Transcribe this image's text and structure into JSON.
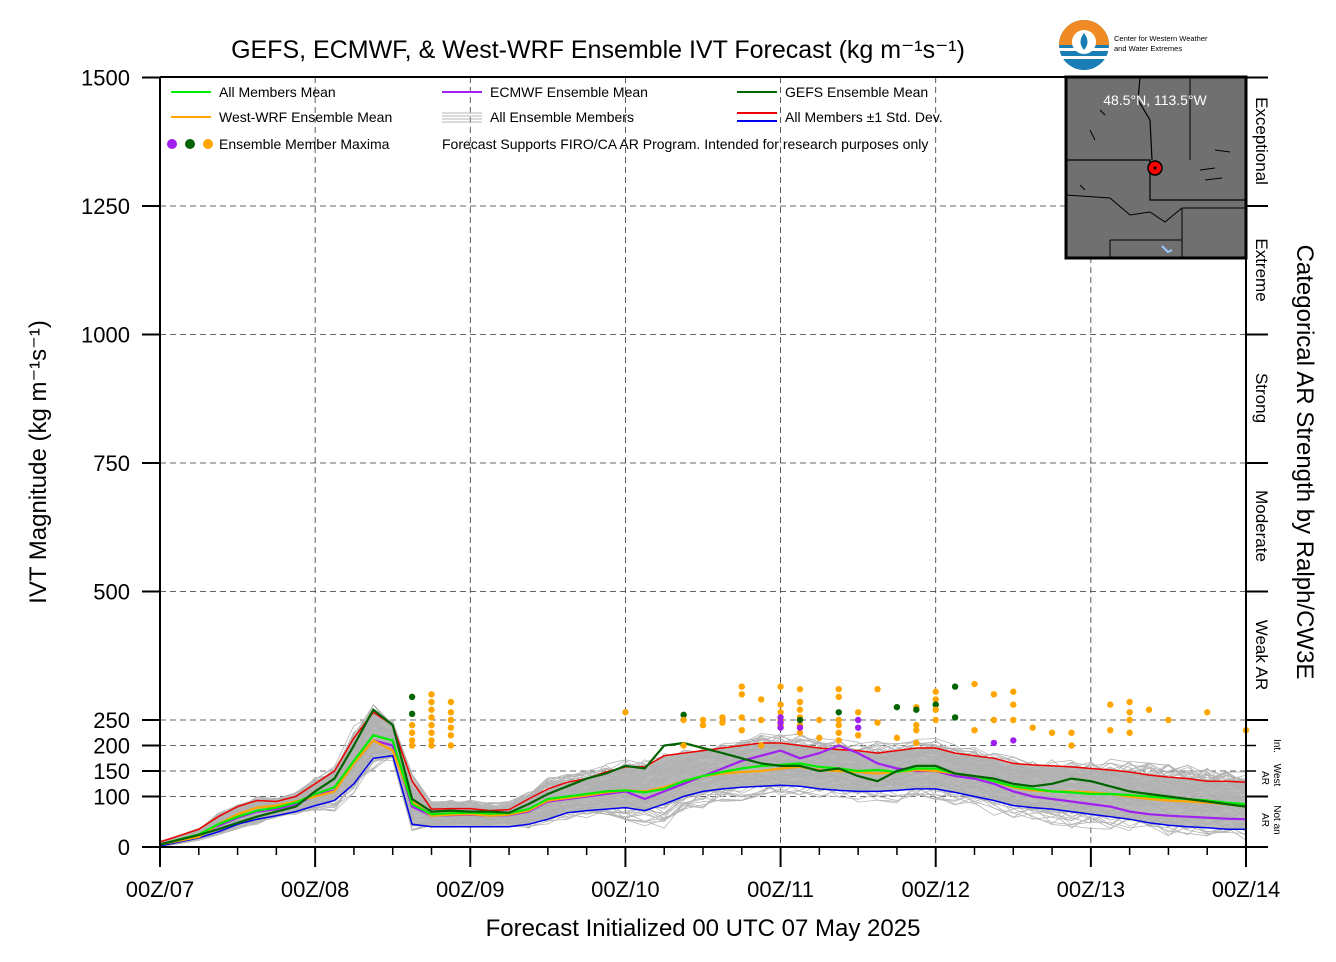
{
  "title": "GEFS, ECMWF, & West-WRF Ensemble IVT Forecast (kg m⁻¹s⁻¹)",
  "xlabel": "Forecast Initialized 00 UTC 07 May 2025",
  "ylabel": "IVT Magnitude (kg m⁻¹s⁻¹)",
  "right_axis_label": "Categorical AR Strength by Ralph/CW3E",
  "logo": {
    "line1": "Center for Western Weather",
    "line2": "and Water Extremes"
  },
  "inset": {
    "location_text": "48.5°N, 113.5°W"
  },
  "legend": {
    "all_mean": "All Members Mean",
    "ecmwf_mean": "ECMWF Ensemble Mean",
    "gefs_mean": "GEFS Ensemble Mean",
    "wrf_mean": "West-WRF Ensemble Mean",
    "all_members": "All Ensemble Members",
    "std_dev": "All Members ±1 Std. Dev.",
    "maxima": "Ensemble Member Maxima",
    "note": "Forecast Supports FIRO/CA AR Program. Intended for research purposes only"
  },
  "categories": {
    "exceptional": "Exceptional",
    "extreme": "Extreme",
    "strong": "Strong",
    "moderate": "Moderate",
    "weak": "Weak AR",
    "int_1": "Int.",
    "int_2": "West",
    "int_3": "AR",
    "not_1": "Not an",
    "not_2": "AR"
  },
  "colors": {
    "all_mean": "#00ee00",
    "ecmwf": "#a020f0",
    "gefs": "#006400",
    "wrf": "#ffa500",
    "std_upper": "#ee0000",
    "std_lower": "#0000ee",
    "members": "#b4b4b4",
    "band": "#b0b0b0",
    "map_bg": "#707070"
  },
  "chart_data": {
    "type": "line",
    "xlabel": "Forecast Initialized 00 UTC 07 May 2025",
    "ylabel": "IVT Magnitude (kg m⁻¹s⁻¹)",
    "x_unit": "forecast hour",
    "xlim": [
      0,
      168
    ],
    "ylim": [
      0,
      1500
    ],
    "x_ticks": [
      0,
      24,
      48,
      72,
      96,
      120,
      144,
      168
    ],
    "x_tick_labels": [
      "00Z/07",
      "00Z/08",
      "00Z/09",
      "00Z/10",
      "00Z/11",
      "00Z/12",
      "00Z/13",
      "00Z/14"
    ],
    "y_ticks": [
      0,
      100,
      150,
      200,
      250,
      500,
      750,
      1000,
      1250,
      1500
    ],
    "y_tick_labels": [
      "0",
      "100",
      "150",
      "200",
      "250",
      "500",
      "750",
      "1000",
      "1250",
      "1500"
    ],
    "grid": true,
    "ar_category_bounds": [
      0,
      100,
      250,
      500,
      750,
      1000,
      1250,
      1500
    ],
    "x": [
      0,
      6,
      9,
      12,
      15,
      18,
      21,
      24,
      27,
      30,
      33,
      36,
      39,
      42,
      45,
      48,
      51,
      54,
      57,
      60,
      63,
      66,
      69,
      72,
      75,
      78,
      81,
      84,
      87,
      90,
      93,
      96,
      99,
      102,
      105,
      108,
      111,
      114,
      117,
      120,
      123,
      126,
      129,
      132,
      135,
      138,
      141,
      144,
      147,
      150,
      153,
      156,
      159,
      162,
      165,
      168
    ],
    "series": [
      {
        "name": "All Members Mean",
        "key": "all_mean",
        "values": [
          5,
          25,
          45,
          60,
          72,
          78,
          88,
          105,
          118,
          170,
          220,
          210,
          85,
          65,
          67,
          68,
          66,
          67,
          75,
          95,
          100,
          105,
          110,
          112,
          108,
          115,
          130,
          140,
          148,
          155,
          160,
          162,
          165,
          158,
          155,
          150,
          152,
          148,
          155,
          155,
          145,
          140,
          130,
          120,
          115,
          110,
          108,
          105,
          105,
          103,
          100,
          97,
          95,
          92,
          88,
          85
        ]
      },
      {
        "name": "ECMWF Ensemble Mean",
        "key": "ecmwf",
        "values": [
          5,
          24,
          42,
          58,
          70,
          75,
          85,
          102,
          112,
          165,
          210,
          200,
          80,
          62,
          63,
          64,
          62,
          63,
          70,
          90,
          95,
          100,
          105,
          110,
          95,
          110,
          125,
          140,
          155,
          170,
          180,
          190,
          175,
          185,
          200,
          185,
          165,
          155,
          150,
          150,
          140,
          135,
          125,
          110,
          100,
          95,
          90,
          85,
          80,
          70,
          65,
          62,
          60,
          58,
          56,
          55
        ]
      },
      {
        "name": "GEFS Ensemble Mean",
        "key": "gefs",
        "values": [
          5,
          24,
          35,
          48,
          60,
          70,
          80,
          110,
          135,
          200,
          270,
          240,
          95,
          70,
          72,
          70,
          70,
          68,
          85,
          105,
          120,
          135,
          145,
          160,
          155,
          200,
          205,
          195,
          185,
          175,
          165,
          160,
          160,
          150,
          155,
          140,
          130,
          150,
          160,
          160,
          145,
          140,
          135,
          125,
          120,
          125,
          135,
          130,
          120,
          110,
          105,
          100,
          95,
          90,
          85,
          80
        ]
      },
      {
        "name": "West-WRF Ensemble Mean",
        "key": "wrf",
        "values": [
          5,
          20,
          45,
          65,
          78,
          82,
          90,
          100,
          110,
          165,
          210,
          190,
          90,
          62,
          64,
          65,
          62,
          64,
          72,
          92,
          97,
          102,
          108,
          112,
          110,
          118,
          130,
          140,
          145,
          148,
          150,
          155,
          158,
          152,
          150,
          148,
          145,
          148,
          152,
          150,
          145,
          140,
          130,
          118,
          112,
          110,
          110,
          108,
          105,
          100,
          95,
          92,
          90,
          88,
          85,
          80
        ]
      },
      {
        "name": "All Members ±1 Std. Dev.",
        "key": "std_upper",
        "values": [
          10,
          35,
          60,
          80,
          92,
          90,
          100,
          125,
          150,
          215,
          265,
          240,
          130,
          75,
          76,
          76,
          72,
          74,
          95,
          115,
          128,
          135,
          148,
          158,
          158,
          180,
          185,
          190,
          195,
          200,
          205,
          205,
          200,
          195,
          192,
          190,
          185,
          190,
          195,
          195,
          185,
          180,
          175,
          165,
          162,
          160,
          158,
          155,
          152,
          148,
          142,
          138,
          135,
          130,
          130,
          128
        ]
      },
      {
        "name": "All Members ±1 Std. Dev.",
        "key": "std_lower",
        "values": [
          2,
          18,
          30,
          45,
          55,
          62,
          70,
          82,
          92,
          125,
          175,
          180,
          45,
          40,
          40,
          40,
          40,
          40,
          45,
          55,
          68,
          72,
          75,
          78,
          72,
          85,
          100,
          110,
          115,
          118,
          120,
          122,
          120,
          115,
          112,
          110,
          110,
          112,
          115,
          115,
          108,
          100,
          92,
          82,
          78,
          75,
          70,
          65,
          60,
          55,
          48,
          43,
          40,
          38,
          35,
          35
        ]
      }
    ],
    "maxima": [
      {
        "x": 39,
        "y": 295,
        "model": "gefs"
      },
      {
        "x": 39,
        "y": 262,
        "model": "gefs"
      },
      {
        "x": 39,
        "y": 240,
        "model": "wrf"
      },
      {
        "x": 39,
        "y": 225,
        "model": "wrf"
      },
      {
        "x": 39,
        "y": 210,
        "model": "wrf"
      },
      {
        "x": 39,
        "y": 200,
        "model": "wrf"
      },
      {
        "x": 42,
        "y": 300,
        "model": "wrf"
      },
      {
        "x": 42,
        "y": 285,
        "model": "wrf"
      },
      {
        "x": 42,
        "y": 270,
        "model": "wrf"
      },
      {
        "x": 42,
        "y": 255,
        "model": "wrf"
      },
      {
        "x": 42,
        "y": 240,
        "model": "wrf"
      },
      {
        "x": 42,
        "y": 225,
        "model": "wrf"
      },
      {
        "x": 42,
        "y": 210,
        "model": "wrf"
      },
      {
        "x": 42,
        "y": 200,
        "model": "wrf"
      },
      {
        "x": 45,
        "y": 285,
        "model": "wrf"
      },
      {
        "x": 45,
        "y": 265,
        "model": "wrf"
      },
      {
        "x": 45,
        "y": 250,
        "model": "wrf"
      },
      {
        "x": 45,
        "y": 235,
        "model": "wrf"
      },
      {
        "x": 45,
        "y": 220,
        "model": "wrf"
      },
      {
        "x": 45,
        "y": 200,
        "model": "wrf"
      },
      {
        "x": 72,
        "y": 265,
        "model": "wrf"
      },
      {
        "x": 81,
        "y": 260,
        "model": "gefs"
      },
      {
        "x": 81,
        "y": 250,
        "model": "wrf"
      },
      {
        "x": 81,
        "y": 200,
        "model": "wrf"
      },
      {
        "x": 84,
        "y": 250,
        "model": "wrf"
      },
      {
        "x": 84,
        "y": 240,
        "model": "wrf"
      },
      {
        "x": 87,
        "y": 255,
        "model": "wrf"
      },
      {
        "x": 87,
        "y": 245,
        "model": "wrf"
      },
      {
        "x": 90,
        "y": 315,
        "model": "wrf"
      },
      {
        "x": 90,
        "y": 300,
        "model": "wrf"
      },
      {
        "x": 90,
        "y": 255,
        "model": "wrf"
      },
      {
        "x": 90,
        "y": 230,
        "model": "wrf"
      },
      {
        "x": 93,
        "y": 290,
        "model": "wrf"
      },
      {
        "x": 93,
        "y": 250,
        "model": "wrf"
      },
      {
        "x": 93,
        "y": 200,
        "model": "wrf"
      },
      {
        "x": 96,
        "y": 315,
        "model": "wrf"
      },
      {
        "x": 96,
        "y": 280,
        "model": "wrf"
      },
      {
        "x": 96,
        "y": 265,
        "model": "wrf"
      },
      {
        "x": 96,
        "y": 250,
        "model": "wrf"
      },
      {
        "x": 96,
        "y": 240,
        "model": "wrf"
      },
      {
        "x": 96,
        "y": 255,
        "model": "ecmwf"
      },
      {
        "x": 96,
        "y": 245,
        "model": "ecmwf"
      },
      {
        "x": 96,
        "y": 235,
        "model": "ecmwf"
      },
      {
        "x": 99,
        "y": 310,
        "model": "wrf"
      },
      {
        "x": 99,
        "y": 285,
        "model": "wrf"
      },
      {
        "x": 99,
        "y": 270,
        "model": "wrf"
      },
      {
        "x": 99,
        "y": 255,
        "model": "wrf"
      },
      {
        "x": 99,
        "y": 240,
        "model": "wrf"
      },
      {
        "x": 99,
        "y": 225,
        "model": "wrf"
      },
      {
        "x": 99,
        "y": 250,
        "model": "gefs"
      },
      {
        "x": 99,
        "y": 235,
        "model": "ecmwf"
      },
      {
        "x": 102,
        "y": 250,
        "model": "wrf"
      },
      {
        "x": 102,
        "y": 215,
        "model": "wrf"
      },
      {
        "x": 105,
        "y": 310,
        "model": "wrf"
      },
      {
        "x": 105,
        "y": 295,
        "model": "wrf"
      },
      {
        "x": 105,
        "y": 265,
        "model": "gefs"
      },
      {
        "x": 105,
        "y": 250,
        "model": "wrf"
      },
      {
        "x": 105,
        "y": 240,
        "model": "wrf"
      },
      {
        "x": 105,
        "y": 225,
        "model": "wrf"
      },
      {
        "x": 105,
        "y": 210,
        "model": "wrf"
      },
      {
        "x": 108,
        "y": 265,
        "model": "wrf"
      },
      {
        "x": 108,
        "y": 250,
        "model": "ecmwf"
      },
      {
        "x": 108,
        "y": 235,
        "model": "ecmwf"
      },
      {
        "x": 108,
        "y": 220,
        "model": "wrf"
      },
      {
        "x": 111,
        "y": 310,
        "model": "wrf"
      },
      {
        "x": 111,
        "y": 245,
        "model": "wrf"
      },
      {
        "x": 114,
        "y": 275,
        "model": "gefs"
      },
      {
        "x": 114,
        "y": 215,
        "model": "wrf"
      },
      {
        "x": 117,
        "y": 275,
        "model": "wrf"
      },
      {
        "x": 117,
        "y": 270,
        "model": "gefs"
      },
      {
        "x": 117,
        "y": 240,
        "model": "wrf"
      },
      {
        "x": 117,
        "y": 230,
        "model": "wrf"
      },
      {
        "x": 117,
        "y": 205,
        "model": "wrf"
      },
      {
        "x": 120,
        "y": 305,
        "model": "wrf"
      },
      {
        "x": 120,
        "y": 290,
        "model": "wrf"
      },
      {
        "x": 120,
        "y": 280,
        "model": "gefs"
      },
      {
        "x": 120,
        "y": 270,
        "model": "wrf"
      },
      {
        "x": 120,
        "y": 250,
        "model": "wrf"
      },
      {
        "x": 123,
        "y": 315,
        "model": "gefs"
      },
      {
        "x": 123,
        "y": 255,
        "model": "gefs"
      },
      {
        "x": 126,
        "y": 320,
        "model": "wrf"
      },
      {
        "x": 126,
        "y": 230,
        "model": "wrf"
      },
      {
        "x": 129,
        "y": 300,
        "model": "wrf"
      },
      {
        "x": 129,
        "y": 250,
        "model": "wrf"
      },
      {
        "x": 129,
        "y": 205,
        "model": "ecmwf"
      },
      {
        "x": 132,
        "y": 305,
        "model": "wrf"
      },
      {
        "x": 132,
        "y": 280,
        "model": "wrf"
      },
      {
        "x": 132,
        "y": 250,
        "model": "wrf"
      },
      {
        "x": 132,
        "y": 210,
        "model": "ecmwf"
      },
      {
        "x": 135,
        "y": 235,
        "model": "wrf"
      },
      {
        "x": 138,
        "y": 225,
        "model": "wrf"
      },
      {
        "x": 141,
        "y": 225,
        "model": "wrf"
      },
      {
        "x": 141,
        "y": 200,
        "model": "wrf"
      },
      {
        "x": 147,
        "y": 280,
        "model": "wrf"
      },
      {
        "x": 147,
        "y": 230,
        "model": "wrf"
      },
      {
        "x": 150,
        "y": 285,
        "model": "wrf"
      },
      {
        "x": 150,
        "y": 265,
        "model": "wrf"
      },
      {
        "x": 150,
        "y": 250,
        "model": "wrf"
      },
      {
        "x": 150,
        "y": 225,
        "model": "wrf"
      },
      {
        "x": 153,
        "y": 270,
        "model": "wrf"
      },
      {
        "x": 156,
        "y": 250,
        "model": "wrf"
      },
      {
        "x": 162,
        "y": 265,
        "model": "wrf"
      },
      {
        "x": 168,
        "y": 230,
        "model": "wrf"
      }
    ]
  }
}
